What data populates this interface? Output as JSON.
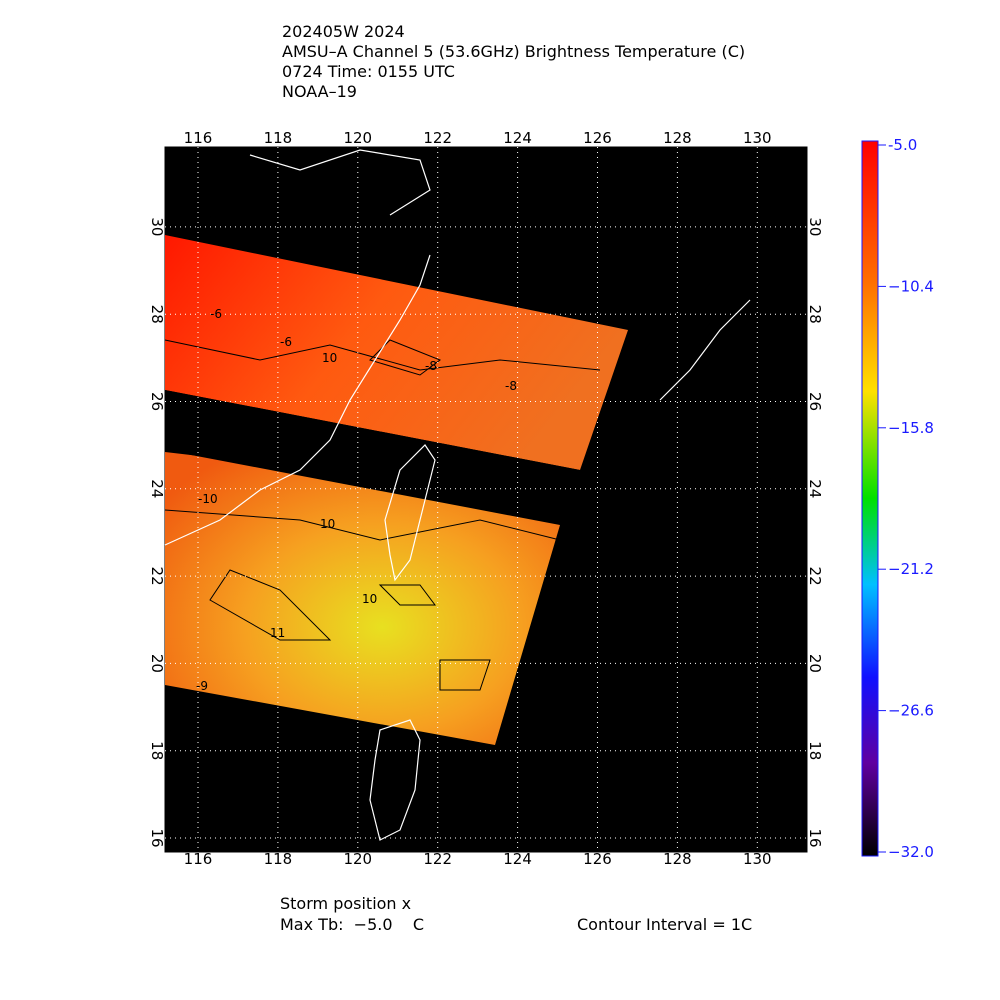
{
  "header": {
    "lines": [
      "202405W 2024",
      "AMSU–A Channel 5 (53.6GHz) Brightness Temperature (C)",
      "0724 Time: 0155 UTC",
      "NOAA–19"
    ]
  },
  "map": {
    "lon_labels": [
      "116",
      "118",
      "120",
      "122",
      "124",
      "126",
      "128",
      "130"
    ],
    "lat_labels": [
      "16",
      "18",
      "20",
      "22",
      "24",
      "26",
      "28",
      "30"
    ],
    "contour_labels": [
      "-6",
      "-6",
      "10",
      "-8",
      "-8",
      "10",
      "-10",
      "11",
      "10",
      "-9"
    ]
  },
  "colorbar": {
    "labels": [
      "-5.0",
      "−10.4",
      "−15.8",
      "−21.2",
      "−26.6",
      "−32.0"
    ]
  },
  "footer": {
    "storm_position": "Storm position x",
    "max_tb": "Max Tb:  −5.0    C",
    "contour_interval": "Contour Interval = 1C"
  }
}
